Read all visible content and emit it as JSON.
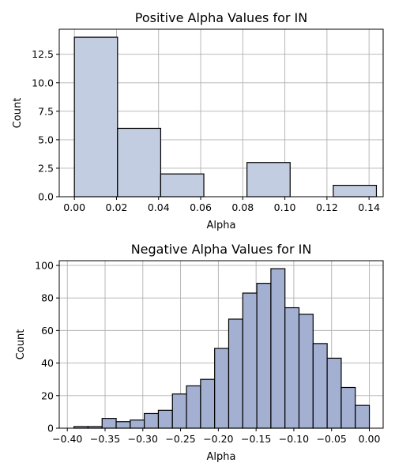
{
  "chart_data": [
    {
      "type": "bar",
      "title": "Positive Alpha Values for IN",
      "xlabel": "Alpha",
      "ylabel": "Count",
      "xlim": [
        -0.0072,
        0.1467
      ],
      "ylim": [
        0,
        14.7
      ],
      "xticks": [
        0.0,
        0.02,
        0.04,
        0.06,
        0.08,
        0.1,
        0.12,
        0.14
      ],
      "xtick_labels": [
        "0.00",
        "0.02",
        "0.04",
        "0.06",
        "0.08",
        "0.10",
        "0.12",
        "0.14"
      ],
      "yticks": [
        0,
        2.5,
        5.0,
        7.5,
        10.0,
        12.5
      ],
      "ytick_labels": [
        "0.0",
        "2.5",
        "5.0",
        "7.5",
        "10.0",
        "12.5"
      ],
      "grid": true,
      "bar_color": "#c3cde1",
      "bins": [
        {
          "x0": 0.0,
          "x1": 0.0205,
          "count": 14
        },
        {
          "x0": 0.0205,
          "x1": 0.041,
          "count": 6
        },
        {
          "x0": 0.041,
          "x1": 0.0615,
          "count": 2
        },
        {
          "x0": 0.082,
          "x1": 0.1025,
          "count": 3
        },
        {
          "x0": 0.123,
          "x1": 0.1435,
          "count": 1
        }
      ]
    },
    {
      "type": "bar",
      "title": "Negative Alpha Values for IN",
      "xlabel": "Alpha",
      "ylabel": "Count",
      "xlim": [
        -0.4107,
        0.0183
      ],
      "ylim": [
        0,
        102.9
      ],
      "xticks": [
        -0.4,
        -0.35,
        -0.3,
        -0.25,
        -0.2,
        -0.15,
        -0.1,
        -0.05,
        0.0
      ],
      "xtick_labels": [
        "−0.40",
        "−0.35",
        "−0.30",
        "−0.25",
        "−0.20",
        "−0.15",
        "−0.10",
        "−0.05",
        "0.00"
      ],
      "yticks": [
        0,
        20,
        40,
        60,
        80,
        100
      ],
      "ytick_labels": [
        "0",
        "20",
        "40",
        "60",
        "80",
        "100"
      ],
      "grid": true,
      "bar_color": "#a3b0d2",
      "bin_start": -0.3912,
      "bin_width": 0.01863,
      "counts": [
        1,
        1,
        6,
        4,
        5,
        9,
        11,
        21,
        26,
        30,
        49,
        67,
        83,
        89,
        98,
        74,
        70,
        52,
        43,
        25,
        14
      ]
    }
  ]
}
